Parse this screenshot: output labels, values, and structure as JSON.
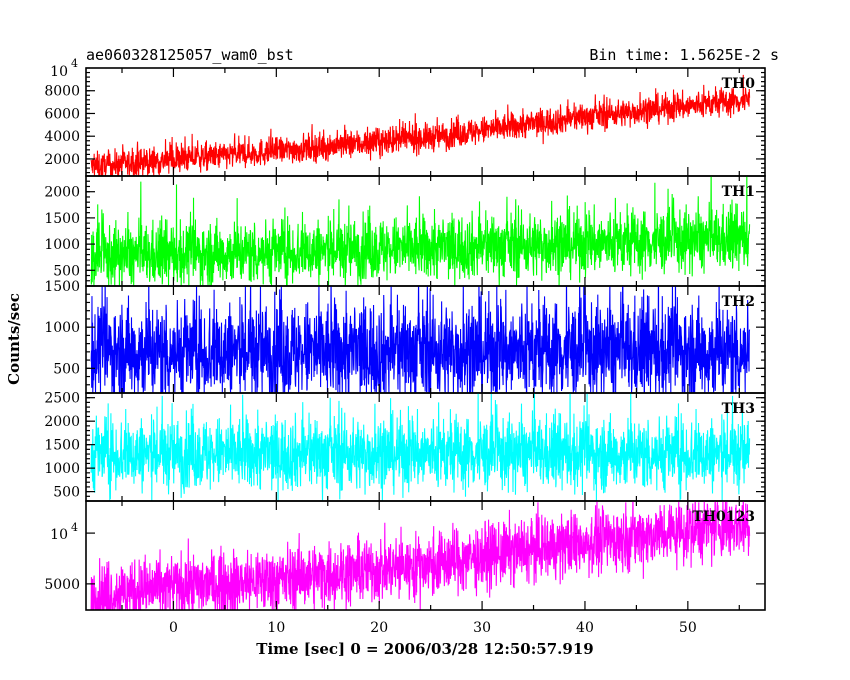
{
  "chart_data": {
    "type": "line",
    "title_left": "ae060328125057_wam0_bst",
    "title_right": "Bin time: 1.5625E-2 s",
    "xlabel": "Time [sec] 0 = 2006/03/28 12:50:57.919",
    "ylabel": "Counts/sec",
    "xlim": [
      -8.5,
      57.5
    ],
    "x_ticks": [
      0,
      10,
      20,
      30,
      40,
      50
    ],
    "x_tick_labels": [
      "0",
      "10",
      "20",
      "30",
      "40",
      "50"
    ],
    "x_data_range": [
      -8,
      56
    ],
    "panels": [
      {
        "name": "TH0",
        "color": "#ff0000",
        "ylim": [
          500,
          10000
        ],
        "y_ticks": [
          2000,
          4000,
          6000,
          8000
        ],
        "y_tick_labels": [
          "2000",
          "4000",
          "6000",
          "8000"
        ],
        "y_top_label_mantissa": "10",
        "y_top_label_exponent": "4",
        "trend": [
          [
            -8,
            1300
          ],
          [
            10,
            2700
          ],
          [
            25,
            3900
          ],
          [
            40,
            5700
          ],
          [
            56,
            7200
          ]
        ],
        "spread": 1100
      },
      {
        "name": "TH1",
        "color": "#00ff00",
        "ylim": [
          200,
          2300
        ],
        "y_ticks": [
          500,
          1000,
          1500,
          2000
        ],
        "y_tick_labels": [
          "500",
          "1000",
          "1500",
          "2000"
        ],
        "trend": [
          [
            -8,
            750
          ],
          [
            20,
            900
          ],
          [
            40,
            1000
          ],
          [
            56,
            1100
          ]
        ],
        "spread": 550
      },
      {
        "name": "TH2",
        "color": "#0000ff",
        "ylim": [
          200,
          1500
        ],
        "y_ticks": [
          500,
          1000,
          1500
        ],
        "y_tick_labels": [
          "500",
          "1000",
          "1500"
        ],
        "trend": [
          [
            -8,
            700
          ],
          [
            56,
            700
          ]
        ],
        "spread": 550
      },
      {
        "name": "TH3",
        "color": "#00ffff",
        "ylim": [
          300,
          2600
        ],
        "y_ticks": [
          500,
          1000,
          1500,
          2000,
          2500
        ],
        "y_tick_labels": [
          "500",
          "1000",
          "1500",
          "2000",
          "2500"
        ],
        "trend": [
          [
            -8,
            1300
          ],
          [
            56,
            1300
          ]
        ],
        "spread": 700
      },
      {
        "name": "TH0123",
        "color": "#ff00ff",
        "scale": "log",
        "ylim": [
          3500,
          15500
        ],
        "y_ticks": [
          5000,
          10000
        ],
        "y_tick_labels": [
          "5000",
          ""
        ],
        "y_tick_sup": [
          "",
          "4"
        ],
        "y_tick_base": [
          "",
          "10"
        ],
        "trend": [
          [
            -8,
            4300
          ],
          [
            10,
            5300
          ],
          [
            25,
            6500
          ],
          [
            40,
            8800
          ],
          [
            56,
            11500
          ]
        ],
        "spread_ratio": 0.22
      }
    ]
  }
}
